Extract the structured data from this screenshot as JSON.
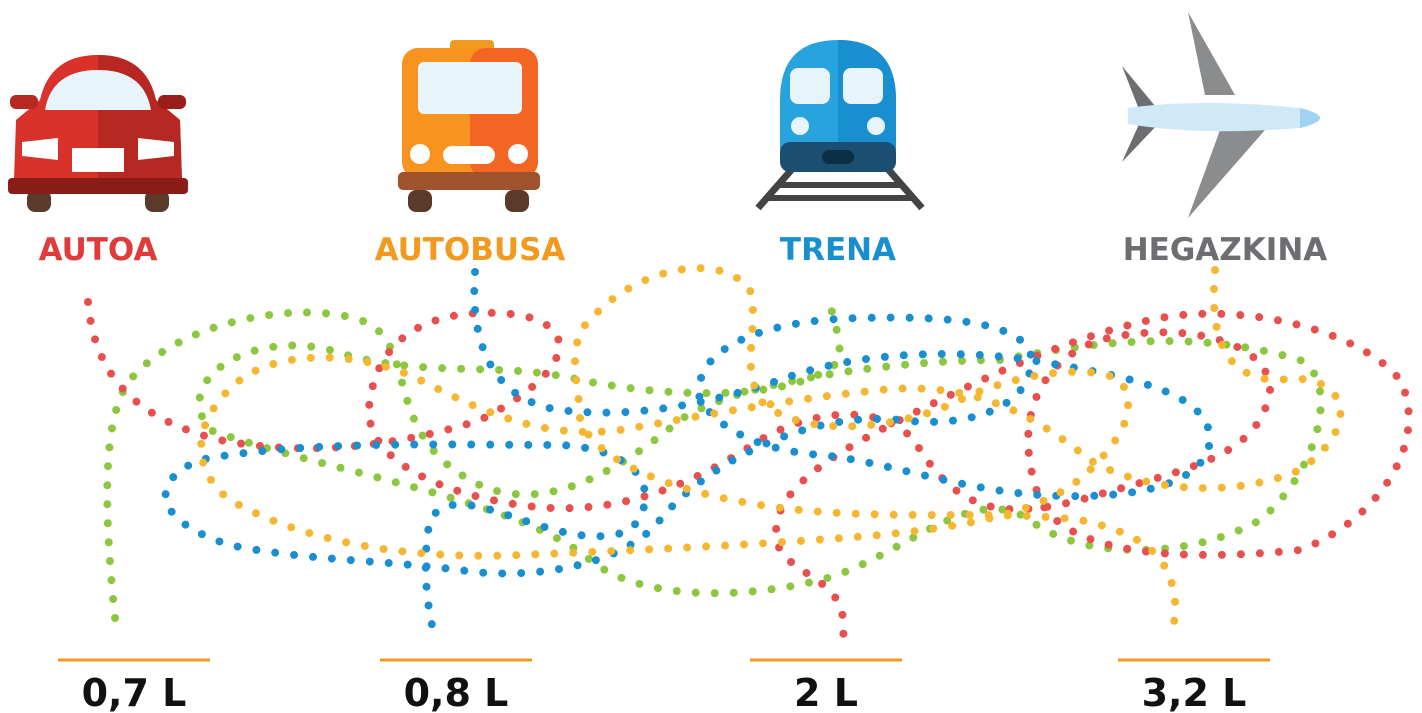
{
  "items": [
    {
      "label": "AUTOA",
      "value": "0,7 L"
    },
    {
      "label": "AUTOBUSA",
      "value": "0,8 L"
    },
    {
      "label": "TRENA",
      "value": "2 L"
    },
    {
      "label": "HEGAZKINA",
      "value": "3,2 L"
    }
  ]
}
